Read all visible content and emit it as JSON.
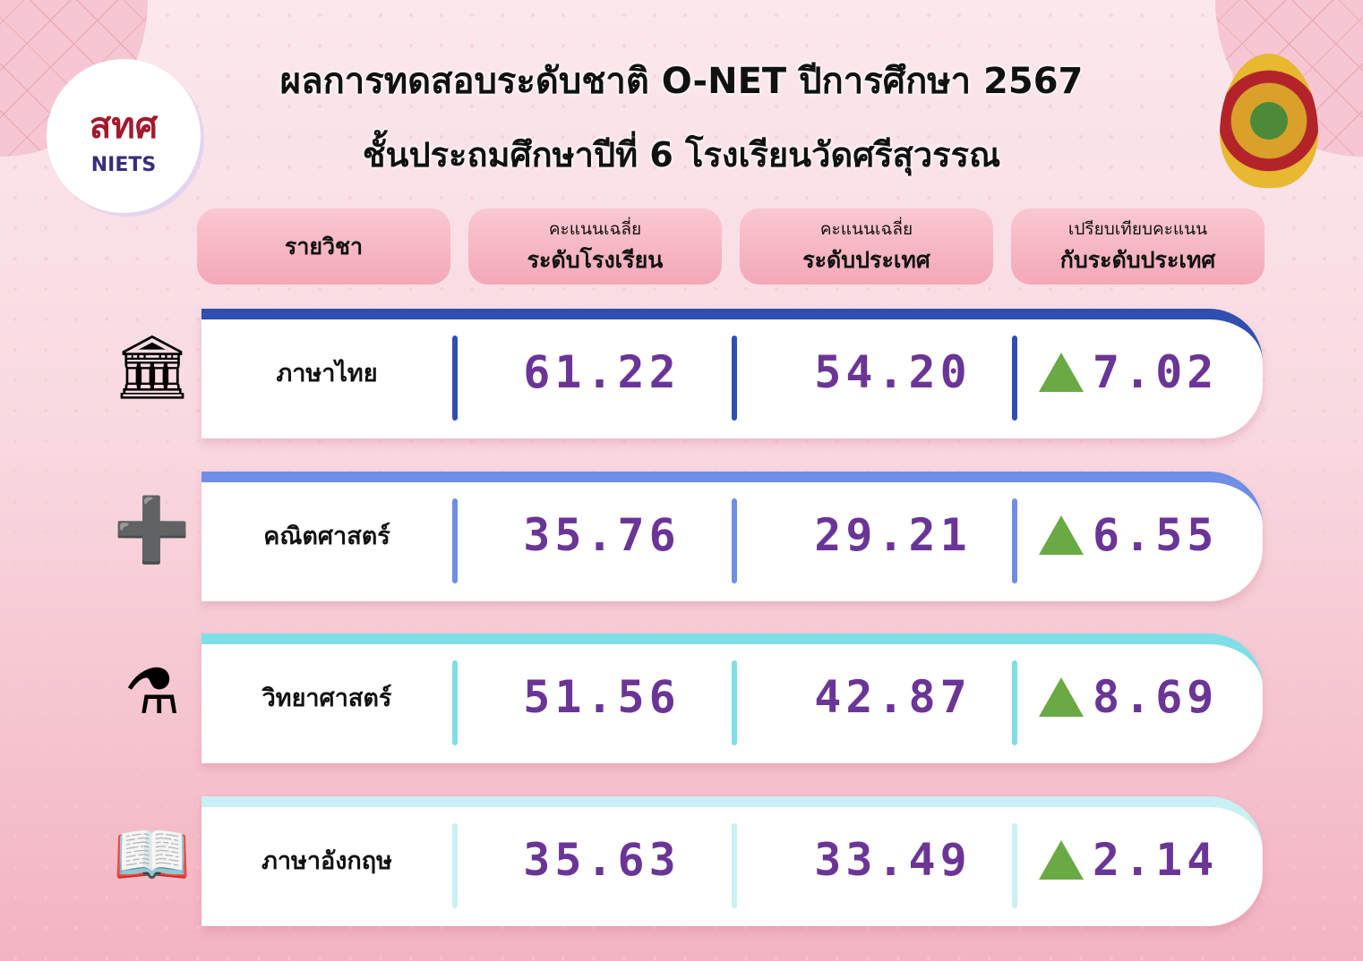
{
  "title": "ผลการทดสอบระดับชาติ O-NET ปีการศึกษา 2567",
  "subtitle": "ชั้นประถมศึกษาปีที่ 6 โรงเรียนวัดศรีสุวรรณ",
  "logo_left": {
    "thai": "สทศ",
    "english": "NIETS"
  },
  "headers": [
    {
      "small": "",
      "big": "รายวิชา"
    },
    {
      "small": "คะแนนเฉลี่ย",
      "big": "ระดับโรงเรียน"
    },
    {
      "small": "คะแนนเฉลี่ย",
      "big": "ระดับประเทศ"
    },
    {
      "small": "เปรียบเทียบคะแนน",
      "big": "กับระดับประเทศ"
    }
  ],
  "rows": [
    {
      "subject": "ภาษาไทย",
      "school": "61.22",
      "national": "54.20",
      "diff": "7.02",
      "trend": "up",
      "accent": "#2f50b0",
      "icon": "thai-language-icon"
    },
    {
      "subject": "คณิตศาสตร์",
      "school": "35.76",
      "national": "29.21",
      "diff": "6.55",
      "trend": "up",
      "accent": "#6f8fe6",
      "icon": "math-icon"
    },
    {
      "subject": "วิทยาศาสตร์",
      "school": "51.56",
      "national": "42.87",
      "diff": "8.69",
      "trend": "up",
      "accent": "#7fdfe6",
      "icon": "science-icon"
    },
    {
      "subject": "ภาษาอังกฤษ",
      "school": "35.63",
      "national": "33.49",
      "diff": "2.14",
      "trend": "up",
      "accent": "#c9f0f4",
      "icon": "english-icon"
    }
  ],
  "colors": {
    "number": "#6b3597",
    "up_triangle": "#6aaa45"
  }
}
